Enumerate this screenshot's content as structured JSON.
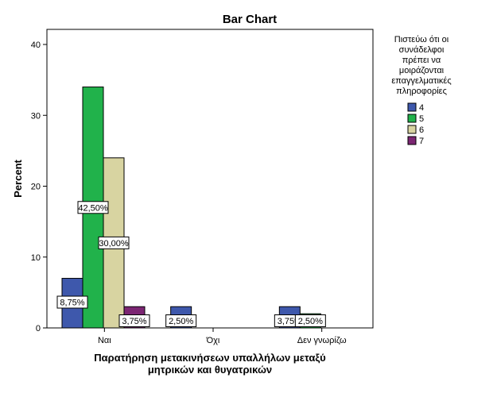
{
  "chart_data": {
    "type": "bar",
    "title": "Bar Chart",
    "xlabel_lines": [
      "Παρατήρηση μετακινήσεων υπαλλήλων μεταξύ",
      "μητρικών και θυγατρικών"
    ],
    "ylabel": "Percent",
    "ylim": [
      0,
      40
    ],
    "yticks": [
      0,
      10,
      20,
      30,
      40
    ],
    "categories": [
      "Ναι",
      "Όχι",
      "Δεν γνωρίζω"
    ],
    "legend_title_lines": [
      "Πιστεύω ότι οι",
      "συνάδελφοι",
      "πρέπει να",
      "μοιράζονται",
      "επαγγελματικές",
      "πληροφορίες"
    ],
    "legend_position": "right",
    "series": [
      {
        "name": "4",
        "color": "#3e58ac",
        "values": [
          7,
          3,
          3
        ],
        "labels": [
          "8,75%",
          "2,50%",
          "3,75%"
        ]
      },
      {
        "name": "5",
        "color": "#21b24b",
        "values": [
          34,
          0,
          2
        ],
        "labels": [
          "42,50%",
          "",
          "2,50%"
        ]
      },
      {
        "name": "6",
        "color": "#d8d4a1",
        "values": [
          24,
          0,
          0
        ],
        "labels": [
          "30,00%",
          "",
          ""
        ]
      },
      {
        "name": "7",
        "color": "#7c2673",
        "values": [
          3,
          0,
          0
        ],
        "labels": [
          "3,75%",
          "",
          ""
        ]
      }
    ]
  }
}
